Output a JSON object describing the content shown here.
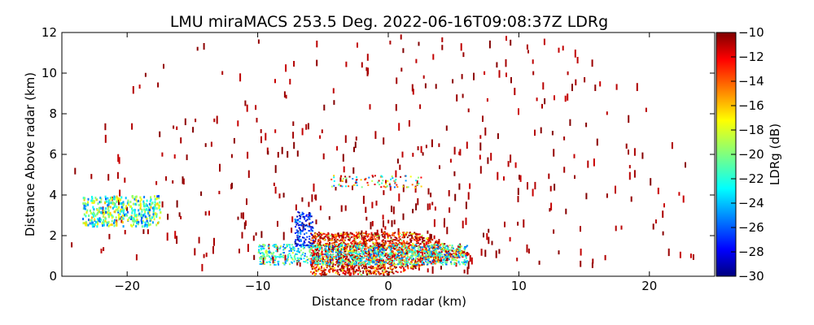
{
  "chart_data": {
    "type": "heatmap",
    "title": "LMU miraMACS 253.5 Deg. 2022-06-16T09:08:37Z  LDRg",
    "xlabel": "Distance from radar (km)",
    "ylabel": "Distance Above radar  (km)",
    "xlim": [
      -25,
      25
    ],
    "ylim": [
      0,
      12
    ],
    "xticks": [
      -20,
      -10,
      0,
      10,
      20
    ],
    "xtick_labels": [
      "−20",
      "−10",
      "0",
      "10",
      "20"
    ],
    "yticks": [
      0,
      2,
      4,
      6,
      8,
      10,
      12
    ],
    "ytick_labels": [
      "0",
      "2",
      "4",
      "6",
      "8",
      "10",
      "12"
    ],
    "colorbar": {
      "label": "LDRg (dB)",
      "range": [
        -30,
        -10
      ],
      "ticks": [
        -10,
        -12,
        -14,
        -16,
        -18,
        -20,
        -22,
        -24,
        -26,
        -28,
        -30
      ],
      "tick_labels": [
        "−10",
        "−12",
        "−14",
        "−16",
        "−18",
        "−20",
        "−22",
        "−24",
        "−26",
        "−28",
        "−30"
      ],
      "colormap": "jet"
    },
    "regions": [
      {
        "desc": "dense near-radar clutter",
        "x_range": [
          -6,
          8
        ],
        "y_range": [
          0,
          2.2
        ],
        "ldr_dominant": -12
      },
      {
        "desc": "depolarizing band",
        "x_range": [
          -10,
          6
        ],
        "y_range": [
          0.6,
          1.6
        ],
        "ldr_dominant": -21
      },
      {
        "desc": "low-LDR column",
        "x_range": [
          -7,
          -6
        ],
        "y_range": [
          1.5,
          3.2
        ],
        "ldr_dominant": -28
      },
      {
        "desc": "left layer",
        "x_range": [
          -23.5,
          -17.5
        ],
        "y_range": [
          2.5,
          4
        ],
        "ldr_dominant": -20
      },
      {
        "desc": "scattered range arcs",
        "x_range": [
          -24,
          24
        ],
        "y_range": [
          0.5,
          12
        ],
        "ldr_dominant": -10
      }
    ]
  },
  "colors": {
    "background": "#ffffff",
    "axis": "#000000",
    "colormap_stops": [
      "#00007f",
      "#0000ff",
      "#007fff",
      "#00ffff",
      "#7fff7f",
      "#ffff00",
      "#ff7f00",
      "#ff0000",
      "#7f0000"
    ]
  }
}
